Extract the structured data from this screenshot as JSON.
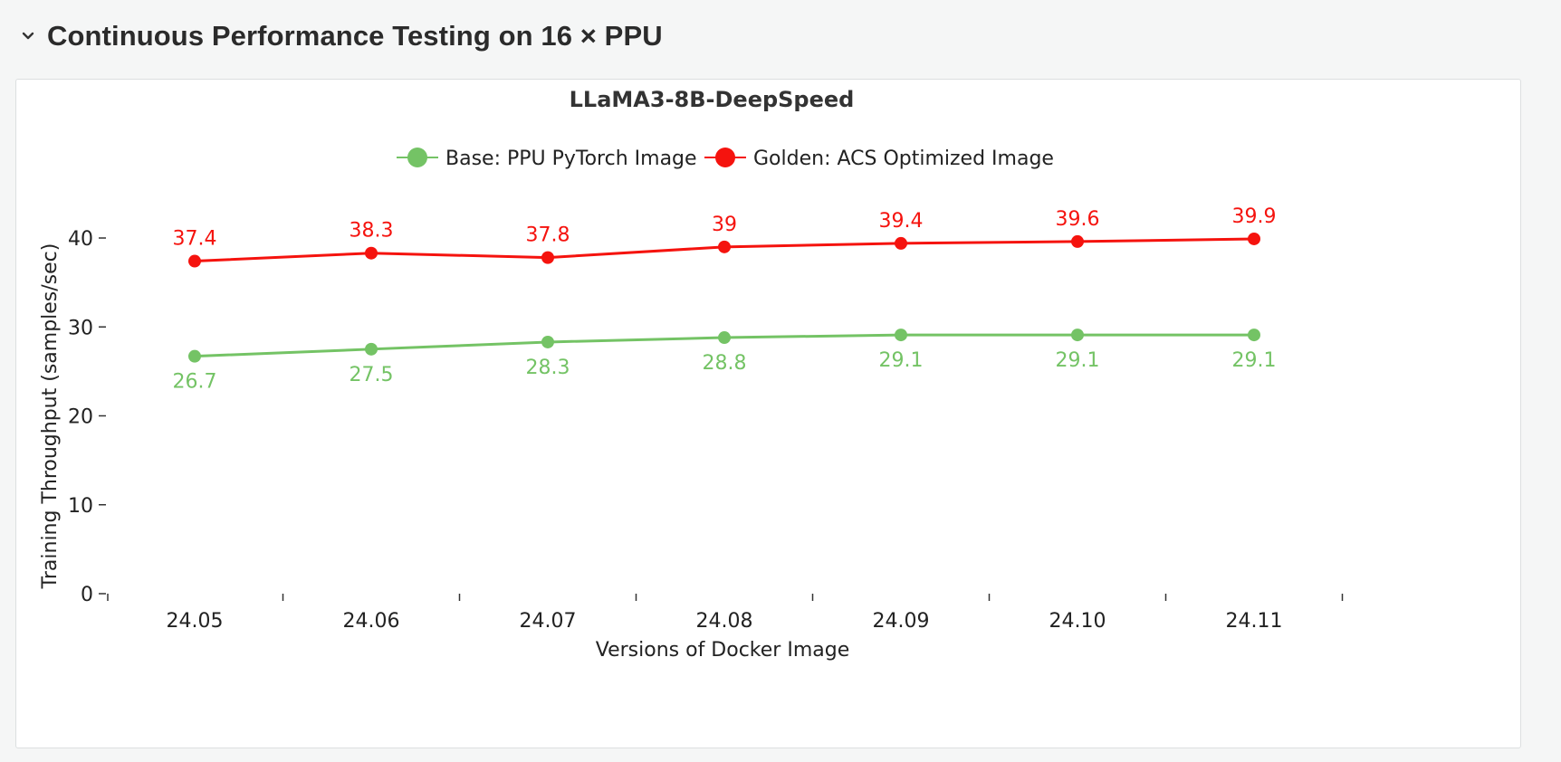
{
  "header": {
    "section_title": "Continuous Performance Testing on 16 × PPU",
    "toggle_icon": "chevron-down-icon"
  },
  "chart_data": {
    "type": "line",
    "title": "LLaMA3-8B-DeepSpeed",
    "xlabel": "Versions of Docker Image",
    "ylabel": "Training Throughput (samples/sec)",
    "categories": [
      "24.05",
      "24.06",
      "24.07",
      "24.08",
      "24.09",
      "24.10",
      "24.11"
    ],
    "ylim": [
      0,
      40
    ],
    "yticks": [
      0,
      10,
      20,
      30,
      40
    ],
    "legend_position": "top-center",
    "grid": false,
    "series": [
      {
        "name": "Base: PPU PyTorch Image",
        "color": "#74c365",
        "values": [
          26.7,
          27.5,
          28.3,
          28.8,
          29.1,
          29.1,
          29.1
        ],
        "labels": [
          "26.7",
          "27.5",
          "28.3",
          "28.8",
          "29.1",
          "29.1",
          "29.1"
        ],
        "label_position": "below"
      },
      {
        "name": "Golden: ACS Optimized Image",
        "color": "#f5130e",
        "values": [
          37.4,
          38.3,
          37.8,
          39,
          39.4,
          39.6,
          39.9
        ],
        "labels": [
          "37.4",
          "38.3",
          "37.8",
          "39",
          "39.4",
          "39.6",
          "39.9"
        ],
        "label_position": "above"
      }
    ]
  }
}
